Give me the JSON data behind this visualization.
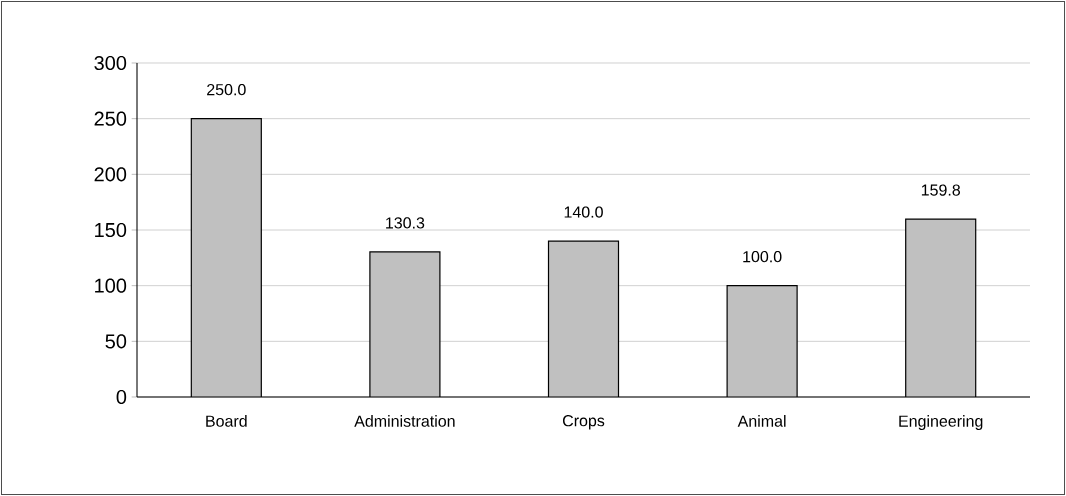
{
  "chart_data": {
    "type": "bar",
    "categories": [
      "Board",
      "Administration",
      "Crops",
      "Animal",
      "Engineering"
    ],
    "values": [
      250.0,
      130.3,
      140.0,
      100.0,
      159.8
    ],
    "value_labels": [
      "250.0",
      "130.3",
      "140.0",
      "100.0",
      "159.8"
    ],
    "color": "#c0c0c0",
    "ylim": [
      0,
      300
    ],
    "yticks": [
      0,
      50,
      100,
      150,
      200,
      250,
      300
    ],
    "grid": "y"
  }
}
